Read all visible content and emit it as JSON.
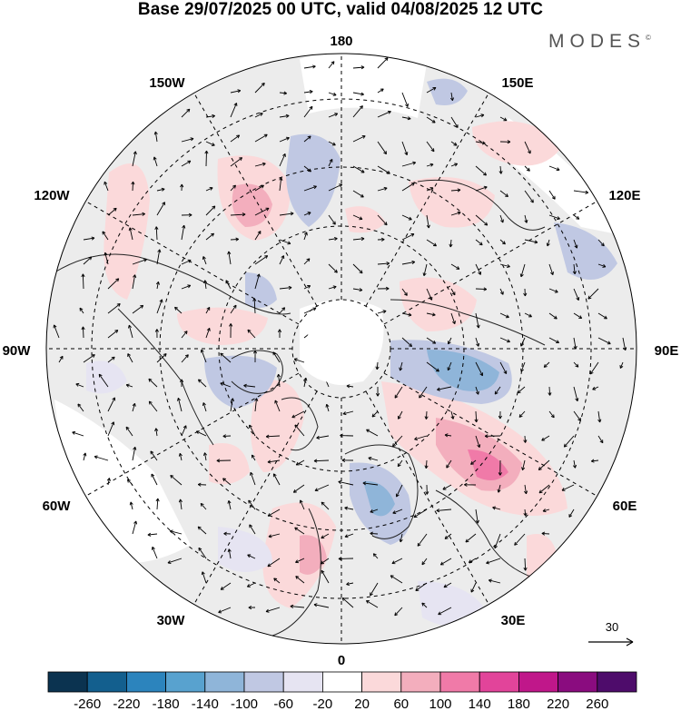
{
  "title": "Base 29/07/2025 00 UTC, valid 04/08/2025 12 UTC",
  "brand": {
    "name": "MODES",
    "mark": "©"
  },
  "longitude_labels": [
    {
      "key": "lon-180",
      "text": "180"
    },
    {
      "key": "lon-150e",
      "text": "150E"
    },
    {
      "key": "lon-120e",
      "text": "120E"
    },
    {
      "key": "lon-90e",
      "text": "90E"
    },
    {
      "key": "lon-60e",
      "text": "60E"
    },
    {
      "key": "lon-30e",
      "text": "30E"
    },
    {
      "key": "lon-0",
      "text": "0"
    },
    {
      "key": "lon-30w",
      "text": "30W"
    },
    {
      "key": "lon-60w",
      "text": "60W"
    },
    {
      "key": "lon-90w",
      "text": "90W"
    },
    {
      "key": "lon-120w",
      "text": "120W"
    },
    {
      "key": "lon-150w",
      "text": "150W"
    }
  ],
  "reference_vector": {
    "label": "30"
  },
  "colorbar": {
    "ticks": [
      "-260",
      "-220",
      "-180",
      "-140",
      "-100",
      "-60",
      "-20",
      "20",
      "60",
      "100",
      "140",
      "180",
      "220",
      "260"
    ],
    "colors": [
      "#0b3350",
      "#135f8e",
      "#2c84bd",
      "#58a2cf",
      "#8fb5d9",
      "#c0c8e3",
      "#e6e4f2",
      "#ffffff",
      "#fbd9da",
      "#f3aebd",
      "#f07aa8",
      "#e2449a",
      "#c0178a",
      "#8a0c7f",
      "#4e0c6b"
    ]
  },
  "map": {
    "projection": "north-polar-stereographic",
    "neutral_color": "#ececec",
    "land_color": "#ffffff",
    "coast_color": "#222222"
  }
}
